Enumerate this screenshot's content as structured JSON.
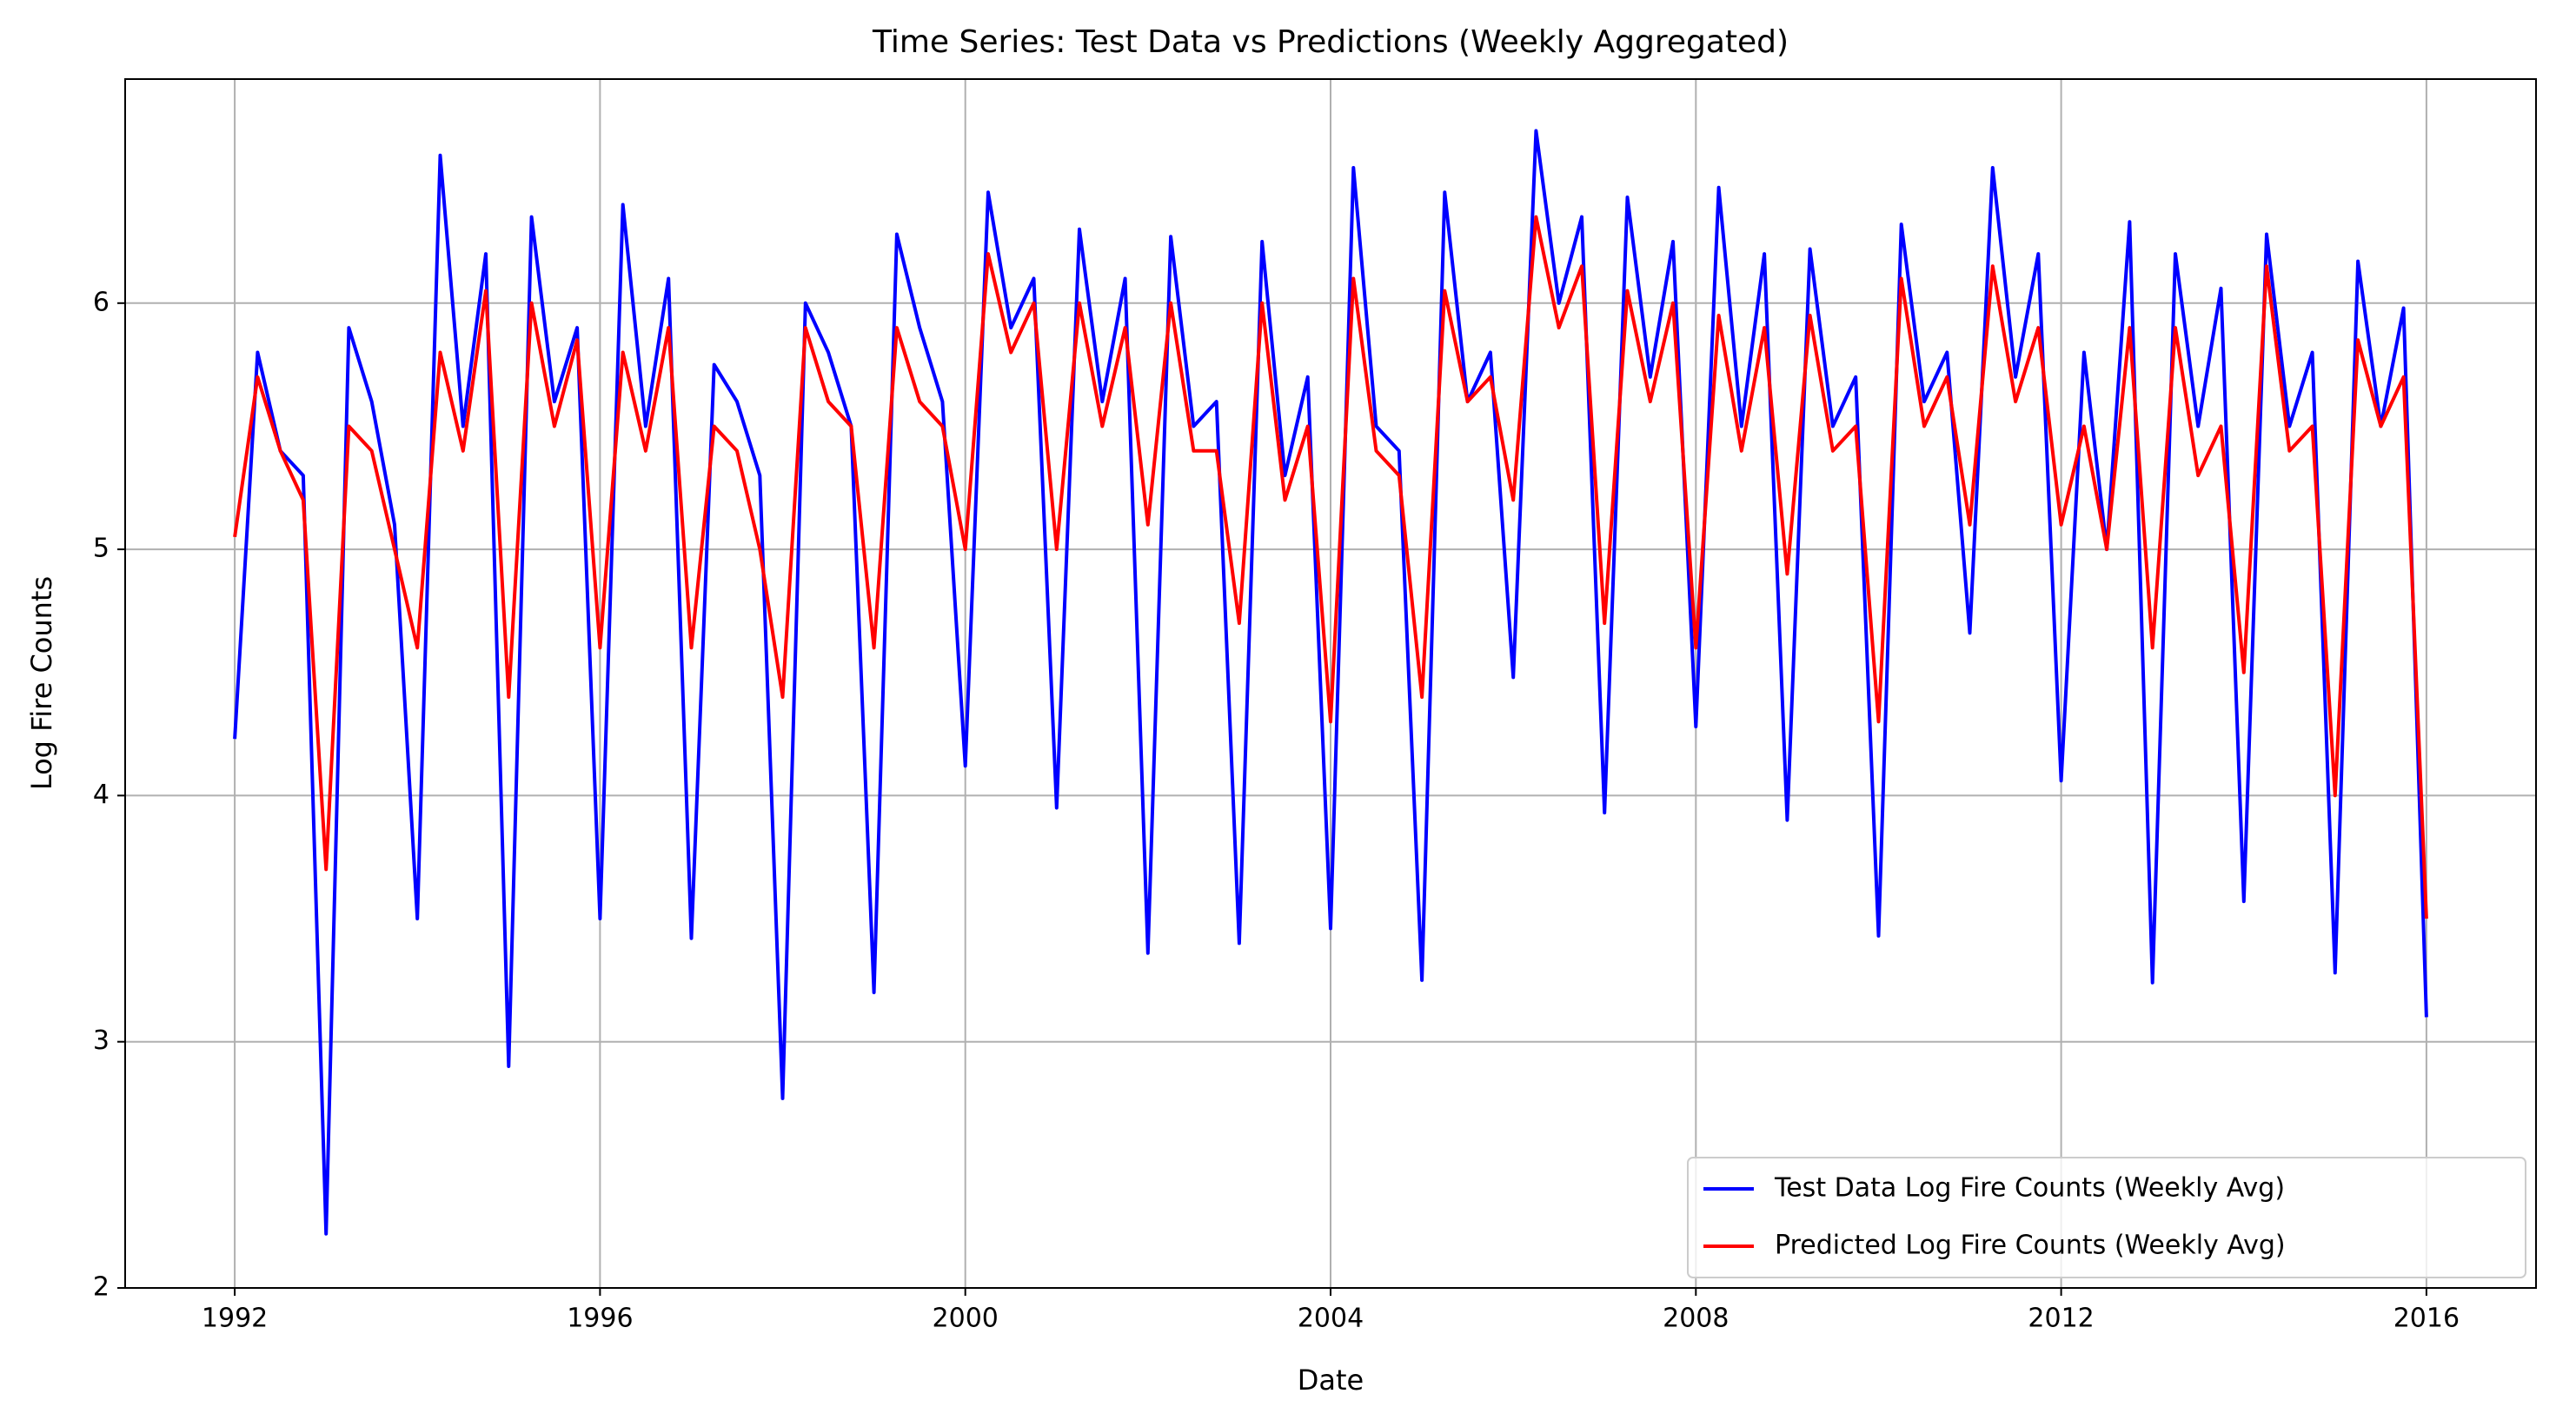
{
  "chart_data": {
    "type": "line",
    "title": "Time Series: Test Data vs Predictions (Weekly Aggregated)",
    "x_label": "Date",
    "y_label": "Log Fire Counts",
    "x": [
      1992,
      1992.25,
      1992.5,
      1992.75,
      1993,
      1993.25,
      1993.5,
      1993.75,
      1994,
      1994.25,
      1994.5,
      1994.75,
      1995,
      1995.25,
      1995.5,
      1995.75,
      1996,
      1996.25,
      1996.5,
      1996.75,
      1997,
      1997.25,
      1997.5,
      1997.75,
      1998,
      1998.25,
      1998.5,
      1998.75,
      1999,
      1999.25,
      1999.5,
      1999.75,
      2000,
      2000.25,
      2000.5,
      2000.75,
      2001,
      2001.25,
      2001.5,
      2001.75,
      2002,
      2002.25,
      2002.5,
      2002.75,
      2003,
      2003.25,
      2003.5,
      2003.75,
      2004,
      2004.25,
      2004.5,
      2004.75,
      2005,
      2005.25,
      2005.5,
      2005.75,
      2006,
      2006.25,
      2006.5,
      2006.75,
      2007,
      2007.25,
      2007.5,
      2007.75,
      2008,
      2008.25,
      2008.5,
      2008.75,
      2009,
      2009.25,
      2009.5,
      2009.75,
      2010,
      2010.25,
      2010.5,
      2010.75,
      2011,
      2011.25,
      2011.5,
      2011.75,
      2012,
      2012.25,
      2012.5,
      2012.75,
      2013,
      2013.25,
      2013.5,
      2013.75,
      2014,
      2014.25,
      2014.5,
      2014.75,
      2015,
      2015.25,
      2015.5,
      2015.75,
      2016
    ],
    "series": [
      {
        "name": "Test Data Log Fire Counts (Weekly Avg)",
        "color": "#0000ff",
        "values": [
          4.23,
          5.8,
          5.4,
          5.3,
          2.22,
          5.9,
          5.6,
          5.1,
          3.5,
          6.6,
          5.5,
          6.2,
          2.9,
          6.35,
          5.6,
          5.9,
          3.5,
          6.4,
          5.5,
          6.1,
          3.42,
          5.75,
          5.6,
          5.3,
          2.77,
          6.0,
          5.8,
          5.5,
          3.2,
          6.28,
          5.9,
          5.6,
          4.12,
          6.45,
          5.9,
          6.1,
          3.95,
          6.3,
          5.6,
          6.1,
          3.36,
          6.27,
          5.5,
          5.6,
          3.4,
          6.25,
          5.3,
          5.7,
          3.46,
          6.55,
          5.5,
          5.4,
          3.25,
          6.45,
          5.6,
          5.8,
          4.48,
          6.7,
          6.0,
          6.35,
          3.93,
          6.43,
          5.7,
          6.25,
          4.28,
          6.47,
          5.5,
          6.2,
          3.9,
          6.22,
          5.5,
          5.7,
          3.43,
          6.32,
          5.6,
          5.8,
          4.66,
          6.55,
          5.7,
          6.2,
          4.06,
          5.8,
          5.0,
          6.33,
          3.24,
          6.2,
          5.5,
          6.06,
          3.57,
          6.28,
          5.5,
          5.8,
          3.28,
          6.17,
          5.5,
          5.98,
          3.1
        ]
      },
      {
        "name": "Predicted Log Fire Counts (Weekly Avg)",
        "color": "#ff0000",
        "values": [
          5.05,
          5.7,
          5.4,
          5.2,
          3.7,
          5.5,
          5.4,
          5.0,
          4.6,
          5.8,
          5.4,
          6.05,
          4.4,
          6.0,
          5.5,
          5.85,
          4.6,
          5.8,
          5.4,
          5.9,
          4.6,
          5.5,
          5.4,
          5.0,
          4.4,
          5.9,
          5.6,
          5.5,
          4.6,
          5.9,
          5.6,
          5.5,
          5.0,
          6.2,
          5.8,
          6.0,
          5.0,
          6.0,
          5.5,
          5.9,
          5.1,
          6.0,
          5.4,
          5.4,
          4.7,
          6.0,
          5.2,
          5.5,
          4.3,
          6.1,
          5.4,
          5.3,
          4.4,
          6.05,
          5.6,
          5.7,
          5.2,
          6.35,
          5.9,
          6.15,
          4.7,
          6.05,
          5.6,
          6.0,
          4.6,
          5.95,
          5.4,
          5.9,
          4.9,
          5.95,
          5.4,
          5.5,
          4.3,
          6.1,
          5.5,
          5.7,
          5.1,
          6.15,
          5.6,
          5.9,
          5.1,
          5.5,
          5.0,
          5.9,
          4.6,
          5.9,
          5.3,
          5.5,
          4.5,
          6.15,
          5.4,
          5.5,
          4.0,
          5.85,
          5.5,
          5.7,
          3.5
        ]
      }
    ],
    "xlim": [
      1990.8,
      2017.2
    ],
    "xticks": [
      1992,
      1996,
      2000,
      2004,
      2008,
      2012,
      2016
    ],
    "ylim": [
      2.0,
      6.91
    ],
    "yticks": [
      2,
      3,
      4,
      5,
      6
    ],
    "grid": true,
    "legend": "lower right"
  }
}
